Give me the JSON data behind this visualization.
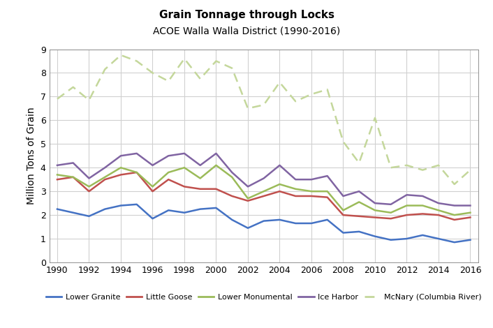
{
  "title_line1": "Grain Tonnage through Locks",
  "title_line2": "ACOE Walla Walla District (1990-2016)",
  "ylabel": "Million Tons of Grain",
  "years": [
    1990,
    1991,
    1992,
    1993,
    1994,
    1995,
    1996,
    1997,
    1998,
    1999,
    2000,
    2001,
    2002,
    2003,
    2004,
    2005,
    2006,
    2007,
    2008,
    2009,
    2010,
    2011,
    2012,
    2013,
    2014,
    2015,
    2016
  ],
  "series": {
    "Lower Granite": [
      2.25,
      2.1,
      1.95,
      2.25,
      2.4,
      2.45,
      1.85,
      2.2,
      2.1,
      2.25,
      2.3,
      1.8,
      1.45,
      1.75,
      1.8,
      1.65,
      1.65,
      1.8,
      1.25,
      1.3,
      1.1,
      0.95,
      1.0,
      1.15,
      1.0,
      0.85,
      0.95
    ],
    "Little Goose": [
      3.5,
      3.6,
      3.0,
      3.5,
      3.7,
      3.8,
      3.0,
      3.5,
      3.2,
      3.1,
      3.1,
      2.8,
      2.6,
      2.8,
      3.0,
      2.8,
      2.8,
      2.75,
      2.0,
      1.95,
      1.9,
      1.85,
      2.0,
      2.05,
      2.0,
      1.8,
      1.9
    ],
    "Lower Monumental": [
      3.7,
      3.6,
      3.2,
      3.6,
      4.0,
      3.8,
      3.2,
      3.8,
      4.0,
      3.55,
      4.1,
      3.6,
      2.7,
      3.0,
      3.3,
      3.1,
      3.0,
      3.0,
      2.2,
      2.55,
      2.2,
      2.1,
      2.4,
      2.4,
      2.2,
      2.0,
      2.1
    ],
    "Ice Harbor": [
      4.1,
      4.2,
      3.55,
      4.0,
      4.5,
      4.6,
      4.1,
      4.5,
      4.6,
      4.1,
      4.6,
      3.8,
      3.2,
      3.55,
      4.1,
      3.5,
      3.5,
      3.65,
      2.8,
      3.0,
      2.5,
      2.45,
      2.85,
      2.8,
      2.5,
      2.4,
      2.4
    ],
    "McNary (Columbia River)": [
      6.9,
      7.4,
      6.85,
      8.15,
      8.75,
      8.5,
      8.0,
      7.65,
      8.6,
      7.75,
      8.5,
      8.2,
      6.5,
      6.65,
      7.6,
      6.8,
      7.1,
      7.3,
      5.1,
      4.2,
      6.1,
      4.0,
      4.1,
      3.9,
      4.1,
      3.3,
      3.9
    ]
  },
  "colors": {
    "Lower Granite": "#4472C4",
    "Little Goose": "#C0504D",
    "Lower Monumental": "#9BBB59",
    "Ice Harbor": "#8064A2",
    "McNary (Columbia River)": "#C4D79B"
  },
  "ylim": [
    0,
    9
  ],
  "yticks": [
    0,
    1,
    2,
    3,
    4,
    5,
    6,
    7,
    8,
    9
  ],
  "xticks": [
    1990,
    1992,
    1994,
    1996,
    1998,
    2000,
    2002,
    2004,
    2006,
    2008,
    2010,
    2012,
    2014,
    2016
  ],
  "xlim": [
    1989.5,
    2016.5
  ],
  "background_color": "#ffffff",
  "grid_color": "#d0d0d0",
  "linewidth": 1.8
}
